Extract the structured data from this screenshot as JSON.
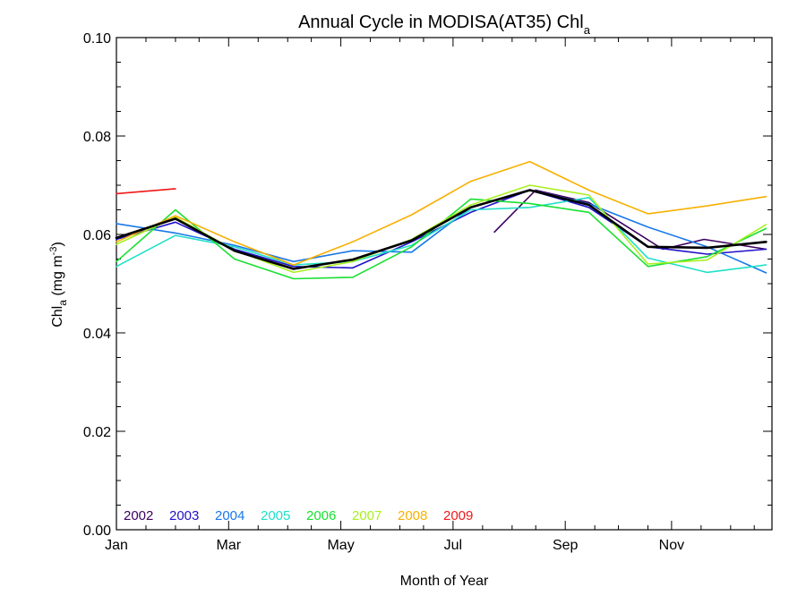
{
  "chart_data": {
    "type": "line",
    "title": "Annual Cycle in MODISA(AT35) Chl",
    "title_subscript": "a",
    "xlabel": "Month of Year",
    "ylabel": "Chl",
    "ylabel_subscript": "a",
    "ylabel_unit_open": " (mg m",
    "ylabel_unit_sup": "-3",
    "ylabel_unit_close": ")",
    "x_unit": "month (1 = mid-January)",
    "xlim": [
      1,
      12.1
    ],
    "ylim": [
      0,
      0.1
    ],
    "x_ticks": [
      {
        "value": 1,
        "label": "Jan"
      },
      {
        "value": 2.9,
        "label": "Mar"
      },
      {
        "value": 4.8,
        "label": "May"
      },
      {
        "value": 6.7,
        "label": "Jul"
      },
      {
        "value": 8.6,
        "label": "Sep"
      },
      {
        "value": 10.4,
        "label": "Nov"
      }
    ],
    "y_ticks": [
      {
        "value": 0,
        "label": "0.00"
      },
      {
        "value": 0.02,
        "label": "0.02"
      },
      {
        "value": 0.04,
        "label": "0.04"
      },
      {
        "value": 0.06,
        "label": "0.06"
      },
      {
        "value": 0.08,
        "label": "0.08"
      },
      {
        "value": 0.1,
        "label": "0.10"
      }
    ],
    "x_minor_ticks": [
      1.5,
      2.0,
      2.4,
      3.4,
      3.9,
      4.3,
      5.3,
      5.8,
      6.2,
      7.2,
      7.7,
      8.1,
      9.1,
      9.5,
      10.0,
      10.9,
      11.4,
      11.8
    ],
    "y_minor_step": 0.005,
    "grid": false,
    "legend_position": "bottom-left",
    "series": [
      {
        "name": "2002",
        "color": "#3c0060",
        "points": [
          [
            7.4,
            0.0605
          ],
          [
            8.1,
            0.069
          ]
        ]
      },
      {
        "name": "2002",
        "color": "#3c0060",
        "points": [
          [
            8.1,
            0.069
          ],
          [
            9.0,
            0.0665
          ],
          [
            10.25,
            0.057
          ],
          [
            10.95,
            0.059
          ],
          [
            12.0,
            0.057
          ]
        ],
        "label_hidden": true
      },
      {
        "name": "2003",
        "color": "#2010c8",
        "points": [
          [
            1.0,
            0.059
          ],
          [
            2.0,
            0.0625
          ],
          [
            3.0,
            0.057
          ],
          [
            4.0,
            0.0535
          ],
          [
            5.0,
            0.0532
          ],
          [
            6.0,
            0.0585
          ],
          [
            7.0,
            0.0645
          ],
          [
            8.0,
            0.069
          ],
          [
            9.0,
            0.0655
          ],
          [
            10.0,
            0.0575
          ],
          [
            11.0,
            0.056
          ],
          [
            12.0,
            0.057
          ]
        ]
      },
      {
        "name": "2004",
        "color": "#1878e8",
        "points": [
          [
            1.0,
            0.0622
          ],
          [
            2.0,
            0.0603
          ],
          [
            3.0,
            0.0578
          ],
          [
            4.0,
            0.0545
          ],
          [
            5.0,
            0.0567
          ],
          [
            6.0,
            0.0564
          ],
          [
            7.0,
            0.0655
          ],
          [
            8.0,
            0.0691
          ],
          [
            9.0,
            0.0662
          ],
          [
            10.0,
            0.0615
          ],
          [
            11.0,
            0.0575
          ],
          [
            12.0,
            0.0522
          ]
        ]
      },
      {
        "name": "2005",
        "color": "#20e0c8",
        "points": [
          [
            1.0,
            0.0535
          ],
          [
            2.0,
            0.0598
          ],
          [
            3.0,
            0.0575
          ],
          [
            4.0,
            0.0538
          ],
          [
            5.0,
            0.0545
          ],
          [
            6.0,
            0.0578
          ],
          [
            7.0,
            0.065
          ],
          [
            8.0,
            0.0655
          ],
          [
            9.0,
            0.0675
          ],
          [
            10.0,
            0.0552
          ],
          [
            11.0,
            0.0523
          ],
          [
            12.0,
            0.0538
          ]
        ]
      },
      {
        "name": "2006",
        "color": "#18e030",
        "points": [
          [
            1.0,
            0.0545
          ],
          [
            2.0,
            0.065
          ],
          [
            3.0,
            0.055
          ],
          [
            4.0,
            0.051
          ],
          [
            5.0,
            0.0513
          ],
          [
            6.0,
            0.0575
          ],
          [
            7.0,
            0.0672
          ],
          [
            8.0,
            0.0663
          ],
          [
            9.0,
            0.0645
          ],
          [
            10.0,
            0.0535
          ],
          [
            11.0,
            0.0555
          ],
          [
            12.0,
            0.0612
          ]
        ]
      },
      {
        "name": "2007",
        "color": "#a8f020",
        "points": [
          [
            1.0,
            0.058
          ],
          [
            2.0,
            0.0635
          ],
          [
            3.0,
            0.0568
          ],
          [
            4.0,
            0.0523
          ],
          [
            5.0,
            0.0545
          ],
          [
            6.0,
            0.059
          ],
          [
            7.0,
            0.066
          ],
          [
            8.0,
            0.07
          ],
          [
            9.0,
            0.068
          ],
          [
            10.0,
            0.054
          ],
          [
            11.0,
            0.0548
          ],
          [
            12.0,
            0.062
          ]
        ]
      },
      {
        "name": "2008",
        "color": "#f8b000",
        "points": [
          [
            1.0,
            0.0585
          ],
          [
            2.0,
            0.0638
          ],
          [
            3.0,
            0.0585
          ],
          [
            4.0,
            0.0538
          ],
          [
            5.0,
            0.0585
          ],
          [
            6.0,
            0.064
          ],
          [
            7.0,
            0.0708
          ],
          [
            8.0,
            0.0748
          ],
          [
            9.0,
            0.069
          ],
          [
            10.0,
            0.0642
          ],
          [
            11.0,
            0.0658
          ],
          [
            12.0,
            0.0677
          ]
        ]
      },
      {
        "name": "2009",
        "color": "#f01818",
        "points": [
          [
            1.0,
            0.0683
          ],
          [
            2.0,
            0.0693
          ]
        ]
      },
      {
        "name": "",
        "color": "#000000",
        "bold": true,
        "points": [
          [
            1.0,
            0.0593
          ],
          [
            2.0,
            0.0632
          ],
          [
            3.0,
            0.0567
          ],
          [
            4.0,
            0.053
          ],
          [
            5.0,
            0.0549
          ],
          [
            6.0,
            0.0588
          ],
          [
            7.0,
            0.0655
          ],
          [
            8.0,
            0.069
          ],
          [
            9.0,
            0.066
          ],
          [
            10.0,
            0.0575
          ],
          [
            11.0,
            0.0573
          ],
          [
            12.0,
            0.0585
          ]
        ]
      }
    ],
    "legend": [
      {
        "label": "2002",
        "color": "#3c0060"
      },
      {
        "label": "2003",
        "color": "#2010c8"
      },
      {
        "label": "2004",
        "color": "#1878e8"
      },
      {
        "label": "2005",
        "color": "#20e0c8"
      },
      {
        "label": "2006",
        "color": "#18e030"
      },
      {
        "label": "2007",
        "color": "#a8f020"
      },
      {
        "label": "2008",
        "color": "#f8b000"
      },
      {
        "label": "2009",
        "color": "#f01818"
      }
    ]
  }
}
